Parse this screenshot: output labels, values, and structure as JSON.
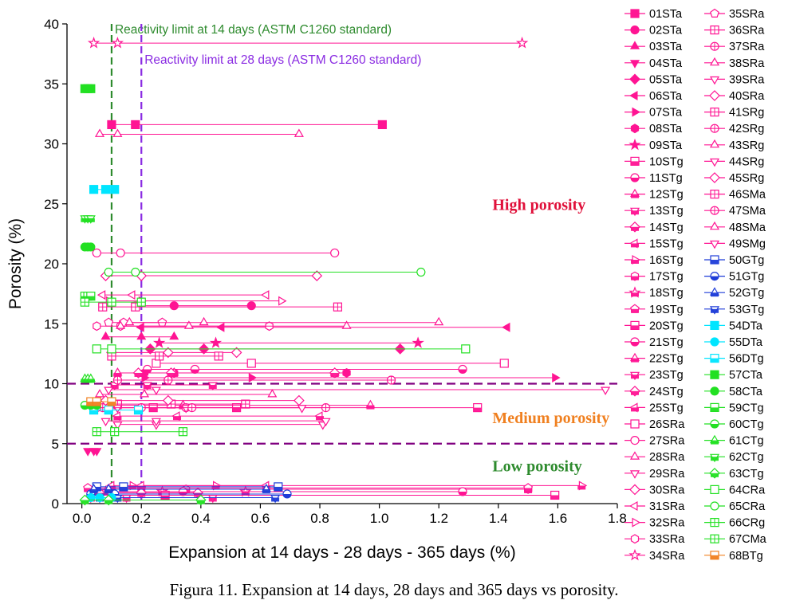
{
  "chart_data": {
    "type": "scatter",
    "title": "",
    "xlabel": "Expansion at 14 days - 28 days - 365 days (%)",
    "ylabel": "Porosity (%)",
    "xlim": [
      -0.05,
      1.8
    ],
    "ylim": [
      0,
      40
    ],
    "x_ticks": [
      "0.0",
      "0.2",
      "0.4",
      "0.6",
      "0.8",
      "1.0",
      "1.2",
      "1.4",
      "1.6",
      "1.8"
    ],
    "y_ticks": [
      "0",
      "5",
      "10",
      "15",
      "20",
      "25",
      "30",
      "35",
      "40"
    ],
    "grid": false,
    "legend_position": "right",
    "reference_lines": [
      {
        "orientation": "vertical",
        "x": 0.1,
        "color": "#2e8b2e",
        "label": "Reactivity limit at 14 days (ASTM C1260 standard)"
      },
      {
        "orientation": "vertical",
        "x": 0.2,
        "color": "#8a2be2",
        "label": "Reactivity limit at 28 days (ASTM C1260 standard)"
      },
      {
        "orientation": "horizontal",
        "y": 10,
        "color": "#800080",
        "label": ""
      },
      {
        "orientation": "horizontal",
        "y": 5,
        "color": "#800080",
        "label": ""
      }
    ],
    "annotations": [
      {
        "text": "High porosity",
        "color": "#e0103a",
        "x": 1.38,
        "y": 24.5
      },
      {
        "text": "Medium porosity",
        "color": "#f08020",
        "x": 1.38,
        "y": 6.7
      },
      {
        "text": "Low porosity",
        "color": "#2e8b2e",
        "x": 1.38,
        "y": 2.7
      }
    ],
    "series": [
      {
        "name": "01STa",
        "color": "#ff1493",
        "marker": "square",
        "fill": true,
        "porosity": 31.6,
        "values": [
          0.1,
          0.18,
          1.01
        ]
      },
      {
        "name": "02STa",
        "color": "#ff1493",
        "marker": "circle",
        "fill": true,
        "porosity": 16.5,
        "values": [
          0.18,
          0.31,
          0.57
        ]
      },
      {
        "name": "03STa",
        "color": "#ff1493",
        "marker": "triangle-up",
        "fill": true,
        "porosity": 13.9,
        "values": [
          0.08,
          0.2,
          0.31
        ]
      },
      {
        "name": "04STa",
        "color": "#ff1493",
        "marker": "triangle-down",
        "fill": true,
        "porosity": 4.4,
        "values": [
          0.02,
          0.04,
          0.05
        ]
      },
      {
        "name": "05STa",
        "color": "#ff1493",
        "marker": "diamond",
        "fill": true,
        "porosity": 12.9,
        "values": [
          0.23,
          0.41,
          1.07
        ]
      },
      {
        "name": "06STa",
        "color": "#ff1493",
        "marker": "triangle-left",
        "fill": true,
        "porosity": 14.7,
        "values": [
          0.2,
          0.47,
          1.43
        ]
      },
      {
        "name": "07STa",
        "color": "#ff1493",
        "marker": "triangle-right",
        "fill": true,
        "porosity": 10.5,
        "values": [
          0.21,
          0.57,
          1.59
        ]
      },
      {
        "name": "08STa",
        "color": "#ff1493",
        "marker": "hexagon",
        "fill": true,
        "porosity": 10.9,
        "values": [
          0.21,
          0.31,
          0.89
        ]
      },
      {
        "name": "09STa",
        "color": "#ff1493",
        "marker": "star",
        "fill": true,
        "porosity": 13.4,
        "values": [
          0.26,
          0.45,
          1.13
        ]
      },
      {
        "name": "10STg",
        "color": "#ff1493",
        "marker": "square",
        "fill": "half",
        "porosity": 8.0,
        "values": [
          0.24,
          0.52,
          1.33
        ]
      },
      {
        "name": "11STg",
        "color": "#ff1493",
        "marker": "circle",
        "fill": "half",
        "porosity": 11.2,
        "values": [
          0.22,
          0.38,
          1.28
        ]
      },
      {
        "name": "12STg",
        "color": "#ff1493",
        "marker": "triangle-up",
        "fill": "half",
        "porosity": 10.9,
        "values": [
          0.12,
          0.31,
          0.85
        ]
      },
      {
        "name": "13STg",
        "color": "#ff1493",
        "marker": "triangle-down",
        "fill": "half",
        "porosity": 9.9,
        "values": [
          0.11,
          0.22,
          0.44
        ]
      },
      {
        "name": "14STg",
        "color": "#ff1493",
        "marker": "diamond",
        "fill": "half",
        "porosity": 10.9,
        "values": [
          0.19,
          0.3,
          0.85
        ]
      },
      {
        "name": "15STg",
        "color": "#ff1493",
        "marker": "triangle-left",
        "fill": "half",
        "porosity": 7.3,
        "values": [
          0.12,
          0.32,
          0.8
        ]
      },
      {
        "name": "16STg",
        "color": "#ff1493",
        "marker": "triangle-right",
        "fill": "half",
        "porosity": 1.5,
        "values": [
          0.17,
          0.45,
          1.68
        ]
      },
      {
        "name": "17STg",
        "color": "#ff1493",
        "marker": "hexagon",
        "fill": "half",
        "porosity": 1.2,
        "values": [
          0.1,
          0.35,
          1.5
        ]
      },
      {
        "name": "18STg",
        "color": "#ff1493",
        "marker": "star",
        "fill": "half",
        "porosity": 1.0,
        "values": [
          0.08,
          0.27,
          0.55
        ]
      },
      {
        "name": "19STg",
        "color": "#ff1493",
        "marker": "pentagon",
        "fill": "half",
        "porosity": 1.3,
        "values": [
          0.02,
          0.2,
          1.5
        ]
      },
      {
        "name": "20STg",
        "color": "#ff1493",
        "marker": "square",
        "fill": "half",
        "porosity": 0.7,
        "values": [
          0.1,
          0.28,
          1.59
        ]
      },
      {
        "name": "21STg",
        "color": "#ff1493",
        "marker": "circle",
        "fill": "half",
        "porosity": 1.0,
        "values": [
          0.05,
          0.34,
          1.28
        ]
      },
      {
        "name": "22STg",
        "color": "#ff1493",
        "marker": "triangle-up",
        "fill": "half",
        "porosity": 8.2,
        "values": [
          0.12,
          0.34,
          0.97
        ]
      },
      {
        "name": "23STg",
        "color": "#ff1493",
        "marker": "triangle-down",
        "fill": "half",
        "porosity": 0.5,
        "values": [
          0.03,
          0.15,
          0.44
        ]
      },
      {
        "name": "24STg",
        "color": "#ff1493",
        "marker": "diamond",
        "fill": "half",
        "porosity": 0.9,
        "values": [
          0.06,
          0.2,
          0.39
        ]
      },
      {
        "name": "25STg",
        "color": "#ff1493",
        "marker": "triangle-left",
        "fill": "half",
        "porosity": 1.5,
        "values": [
          0.1,
          0.2,
          0.62
        ]
      },
      {
        "name": "26SRa",
        "color": "#ff1493",
        "marker": "square",
        "fill": false,
        "porosity": 11.7,
        "values": [
          0.25,
          0.57,
          1.42
        ]
      },
      {
        "name": "27SRa",
        "color": "#ff1493",
        "marker": "circle",
        "fill": false,
        "porosity": 20.9,
        "values": [
          0.05,
          0.13,
          0.85
        ]
      },
      {
        "name": "28SRa",
        "color": "#ff1493",
        "marker": "triangle-up",
        "fill": false,
        "porosity": 30.8,
        "values": [
          0.06,
          0.12,
          0.73
        ]
      },
      {
        "name": "29SRa",
        "color": "#ff1493",
        "marker": "triangle-down",
        "fill": false,
        "porosity": 9.5,
        "values": [
          0.09,
          0.25,
          1.76
        ]
      },
      {
        "name": "30SRa",
        "color": "#ff1493",
        "marker": "diamond",
        "fill": false,
        "porosity": 19.0,
        "values": [
          0.08,
          0.2,
          0.79
        ]
      },
      {
        "name": "31SRa",
        "color": "#ff1493",
        "marker": "triangle-left",
        "fill": false,
        "porosity": 17.4,
        "values": [
          0.07,
          0.17,
          0.62
        ]
      },
      {
        "name": "32SRa",
        "color": "#ff1493",
        "marker": "triangle-right",
        "fill": false,
        "porosity": 16.9,
        "values": [
          0.09,
          0.2,
          0.67
        ]
      },
      {
        "name": "33SRa",
        "color": "#ff1493",
        "marker": "hexagon",
        "fill": false,
        "porosity": 14.8,
        "values": [
          0.05,
          0.13,
          0.63
        ]
      },
      {
        "name": "34SRa",
        "color": "#ff1493",
        "marker": "star",
        "fill": false,
        "porosity": 38.4,
        "values": [
          0.04,
          0.12,
          1.48
        ]
      },
      {
        "name": "35SRa",
        "color": "#ff1493",
        "marker": "pentagon",
        "fill": false,
        "porosity": 15.1,
        "values": [
          0.09,
          0.14,
          0.27
        ]
      },
      {
        "name": "36SRa",
        "color": "#ff1493",
        "marker": "square-cross",
        "fill": false,
        "porosity": 16.4,
        "values": [
          0.07,
          0.18,
          0.86
        ]
      },
      {
        "name": "37SRa",
        "color": "#ff1493",
        "marker": "circle-cross",
        "fill": false,
        "porosity": 10.3,
        "values": [
          0.12,
          0.29,
          1.04
        ]
      },
      {
        "name": "38SRa",
        "color": "#ff1493",
        "marker": "triangle-up",
        "fill": false,
        "porosity": 14.8,
        "values": [
          0.13,
          0.36,
          0.89
        ]
      },
      {
        "name": "39SRa",
        "color": "#ff1493",
        "marker": "triangle-down",
        "fill": false,
        "porosity": 6.6,
        "values": [
          0.12,
          0.25,
          0.81
        ]
      },
      {
        "name": "40SRa",
        "color": "#ff1493",
        "marker": "diamond",
        "fill": false,
        "porosity": 12.6,
        "values": [
          0.1,
          0.29,
          0.52
        ]
      },
      {
        "name": "41SRg",
        "color": "#ff1493",
        "marker": "square-cross",
        "fill": false,
        "porosity": 8.3,
        "values": [
          0.12,
          0.3,
          0.55
        ]
      },
      {
        "name": "42SRg",
        "color": "#ff1493",
        "marker": "circle-cross",
        "fill": false,
        "porosity": 8.0,
        "values": [
          0.07,
          0.35,
          0.82
        ]
      },
      {
        "name": "43SRg",
        "color": "#ff1493",
        "marker": "triangle-up",
        "fill": false,
        "porosity": 15.1,
        "values": [
          0.16,
          0.41,
          1.2
        ]
      },
      {
        "name": "44SRg",
        "color": "#ff1493",
        "marker": "triangle-down",
        "fill": false,
        "porosity": 8.0,
        "values": [
          0.12,
          0.35,
          0.74
        ]
      },
      {
        "name": "45SRg",
        "color": "#ff1493",
        "marker": "diamond",
        "fill": false,
        "porosity": 8.6,
        "values": [
          0.08,
          0.29,
          0.73
        ]
      },
      {
        "name": "46SMa",
        "color": "#ff1493",
        "marker": "square-cross",
        "fill": false,
        "porosity": 12.3,
        "values": [
          0.1,
          0.26,
          0.46
        ]
      },
      {
        "name": "47SMa",
        "color": "#ff1493",
        "marker": "circle-cross",
        "fill": false,
        "porosity": 8.0,
        "values": [
          0.05,
          0.2,
          0.37
        ]
      },
      {
        "name": "48SMa",
        "color": "#ff1493",
        "marker": "triangle-up",
        "fill": false,
        "porosity": 9.1,
        "values": [
          0.06,
          0.21,
          0.64
        ]
      },
      {
        "name": "49SMg",
        "color": "#ff1493",
        "marker": "triangle-down",
        "fill": false,
        "porosity": 6.9,
        "values": [
          0.08,
          0.25,
          0.82
        ]
      },
      {
        "name": "50GTg",
        "color": "#1e3cd8",
        "marker": "square",
        "fill": "half",
        "porosity": 1.4,
        "values": [
          0.05,
          0.14,
          0.66
        ]
      },
      {
        "name": "51GTg",
        "color": "#1e3cd8",
        "marker": "circle",
        "fill": "half",
        "porosity": 0.8,
        "values": [
          0.03,
          0.11,
          0.69
        ]
      },
      {
        "name": "52GTg",
        "color": "#1e3cd8",
        "marker": "triangle-up",
        "fill": "half",
        "porosity": 1.2,
        "values": [
          0.04,
          0.09,
          0.62
        ]
      },
      {
        "name": "53GTg",
        "color": "#1e3cd8",
        "marker": "triangle-down",
        "fill": "half",
        "porosity": 0.5,
        "values": [
          0.06,
          0.12,
          0.65
        ]
      },
      {
        "name": "54DTa",
        "color": "#00e5ff",
        "marker": "square",
        "fill": true,
        "porosity": 26.2,
        "values": [
          0.04,
          0.08,
          0.11
        ]
      },
      {
        "name": "55DTa",
        "color": "#00e5ff",
        "marker": "circle",
        "fill": true,
        "porosity": 0.5,
        "values": [
          0.03,
          0.06,
          0.1
        ]
      },
      {
        "name": "56DTg",
        "color": "#00e5ff",
        "marker": "square",
        "fill": "half",
        "porosity": 7.8,
        "values": [
          0.04,
          0.09,
          0.19
        ]
      },
      {
        "name": "57CTa",
        "color": "#22e022",
        "marker": "square",
        "fill": true,
        "porosity": 34.6,
        "values": [
          0.01,
          0.02,
          0.03
        ]
      },
      {
        "name": "58CTa",
        "color": "#22e022",
        "marker": "circle",
        "fill": true,
        "porosity": 21.4,
        "values": [
          0.01,
          0.02,
          0.03
        ]
      },
      {
        "name": "59CTg",
        "color": "#22e022",
        "marker": "square",
        "fill": "half",
        "porosity": 17.3,
        "values": [
          0.01,
          0.02,
          0.03
        ]
      },
      {
        "name": "60CTg",
        "color": "#22e022",
        "marker": "circle",
        "fill": "half",
        "porosity": 8.2,
        "values": [
          0.01,
          0.03,
          0.05
        ]
      },
      {
        "name": "61CTg",
        "color": "#22e022",
        "marker": "triangle-up",
        "fill": "half",
        "porosity": 10.4,
        "values": [
          0.01,
          0.02,
          0.03
        ]
      },
      {
        "name": "62CTg",
        "color": "#22e022",
        "marker": "triangle-down",
        "fill": "half",
        "porosity": 23.8,
        "values": [
          0.01,
          0.02,
          0.03
        ]
      },
      {
        "name": "63CTg",
        "color": "#22e022",
        "marker": "diamond",
        "fill": "half",
        "porosity": 0.3,
        "values": [
          0.01,
          0.09,
          0.4
        ]
      },
      {
        "name": "64CRa",
        "color": "#22e022",
        "marker": "square",
        "fill": false,
        "porosity": 12.9,
        "values": [
          0.05,
          0.1,
          1.29
        ]
      },
      {
        "name": "65CRa",
        "color": "#22e022",
        "marker": "circle",
        "fill": false,
        "porosity": 19.3,
        "values": [
          0.09,
          0.18,
          1.14
        ]
      },
      {
        "name": "66CRg",
        "color": "#22e022",
        "marker": "square-cross",
        "fill": false,
        "porosity": 6.0,
        "values": [
          0.05,
          0.11,
          0.34
        ]
      },
      {
        "name": "67CMa",
        "color": "#22e022",
        "marker": "square-cross",
        "fill": false,
        "porosity": 16.8,
        "values": [
          0.01,
          0.1,
          0.2
        ]
      },
      {
        "name": "68BTg",
        "color": "#f08020",
        "marker": "square",
        "fill": "half",
        "porosity": 8.5,
        "values": [
          0.03,
          0.05,
          0.1
        ]
      }
    ]
  },
  "caption": "Figura 11. Expansion at 14 days, 28 days and 365 days vs porosity."
}
